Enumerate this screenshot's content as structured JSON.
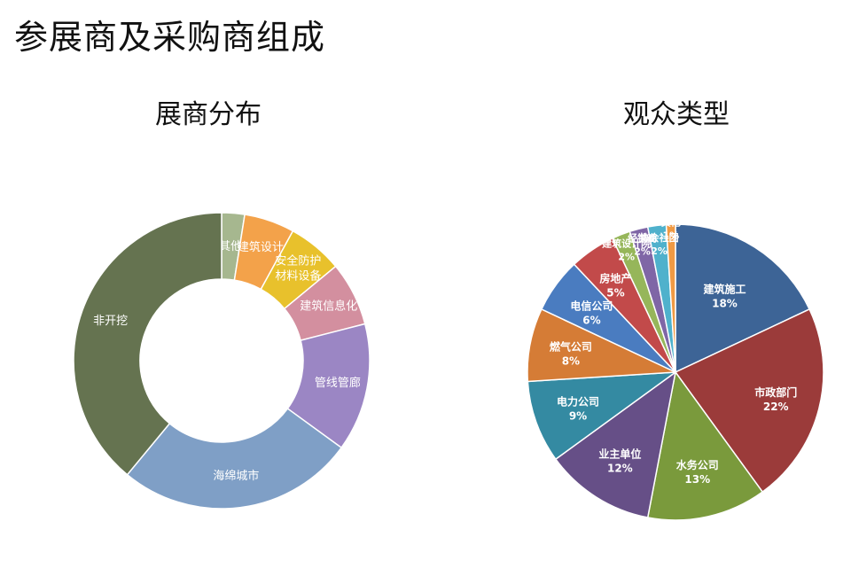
{
  "page": {
    "title": "参展商及采购商组成"
  },
  "chart_data": [
    {
      "type": "pie",
      "variant": "donut",
      "title": "展商分布",
      "categories": [
        "其他",
        "建筑设计",
        "安全防护\n材料设备",
        "建筑信息化",
        "管线管廊",
        "海绵城市",
        "非开挖"
      ],
      "values": [
        2.5,
        5.5,
        6,
        7,
        14,
        26,
        39
      ],
      "colors": [
        "#a6b78f",
        "#f3a24a",
        "#e8c12c",
        "#d38f9f",
        "#9b86c4",
        "#7f9fc6",
        "#657350"
      ],
      "show_values": false,
      "legend": "none"
    },
    {
      "type": "pie",
      "title": "观众类型",
      "categories": [
        "建筑施工",
        "市政部门",
        "水务公司",
        "业主单位",
        "电力公司",
        "燃气公司",
        "电信公司",
        "房地产",
        "建筑设计院",
        "经销商",
        "协会社团",
        "其他"
      ],
      "values": [
        18,
        22,
        13,
        12,
        9,
        8,
        6,
        5,
        2,
        2,
        2,
        1
      ],
      "value_labels": [
        "18%",
        "22%",
        "13%",
        "12%",
        "9%",
        "8%",
        "6%",
        "5%",
        "2%",
        "2%",
        "2%",
        "1%"
      ],
      "colors": [
        "#3d6496",
        "#9b3b3a",
        "#7a9a3c",
        "#664f87",
        "#348aa2",
        "#d57c36",
        "#4a7cc0",
        "#c24a4a",
        "#96b65a",
        "#7f66a6",
        "#4fb1cc",
        "#f09a44"
      ],
      "legend": "none"
    }
  ]
}
